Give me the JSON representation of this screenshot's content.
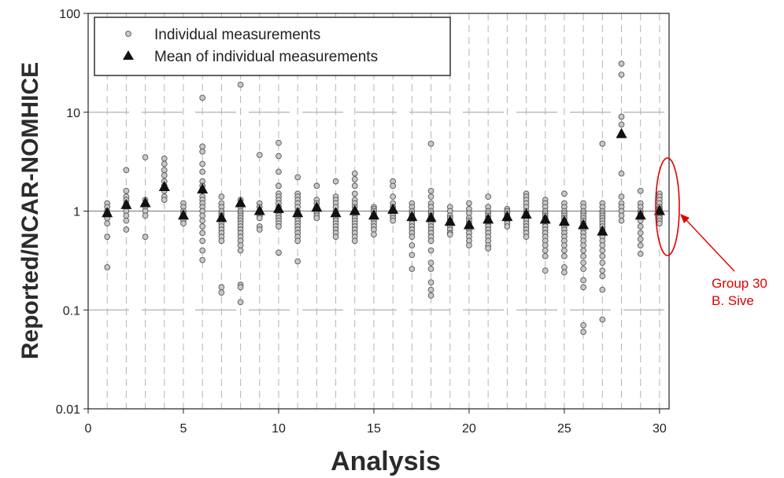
{
  "chart_data": {
    "type": "scatter",
    "xlabel": "Analysis",
    "ylabel": "Reported/NCAR-NOMHICE",
    "yscale": "log",
    "xlim": [
      0,
      30.5
    ],
    "ylim": [
      0.01,
      100
    ],
    "x_ticks": [
      0,
      5,
      10,
      15,
      20,
      25,
      30
    ],
    "y_ticks": [
      {
        "value": 0.01,
        "label": "0.01"
      },
      {
        "value": 0.1,
        "label": "0.1"
      },
      {
        "value": 1,
        "label": "1"
      },
      {
        "value": 10,
        "label": "10"
      },
      {
        "value": 100,
        "label": "100"
      }
    ],
    "reference_line": 1,
    "legend": {
      "position": "top-left",
      "entries": [
        {
          "label": "Individual measurements",
          "marker": "circle"
        },
        {
          "label": "Mean of individual measurements",
          "marker": "triangle"
        }
      ]
    },
    "series": [
      {
        "name": "Individual measurements",
        "points": [
          {
            "x": 1,
            "values": [
              1.2,
              1.1,
              1.0,
              0.95,
              0.9,
              0.85,
              0.75,
              0.55,
              0.27
            ]
          },
          {
            "x": 2,
            "values": [
              2.6,
              1.6,
              1.4,
              1.3,
              1.2,
              1.1,
              1.0,
              0.9,
              0.8,
              0.65
            ]
          },
          {
            "x": 3,
            "values": [
              3.5,
              1.3,
              1.2,
              1.1,
              1.0,
              0.9,
              0.55
            ]
          },
          {
            "x": 4,
            "values": [
              3.4,
              3.0,
              2.6,
              2.3,
              2.0,
              1.8,
              1.6,
              1.4,
              1.3
            ]
          },
          {
            "x": 5,
            "values": [
              1.2,
              1.1,
              1.0,
              0.95,
              0.9,
              0.85,
              0.8,
              0.75
            ]
          },
          {
            "x": 6,
            "values": [
              14,
              4.5,
              4.0,
              3.0,
              2.5,
              2.0,
              1.8,
              1.6,
              1.4,
              1.3,
              1.2,
              1.1,
              1.0,
              0.9,
              0.8,
              0.7,
              0.6,
              0.5,
              0.4,
              0.32
            ]
          },
          {
            "x": 7,
            "values": [
              1.4,
              1.2,
              1.1,
              1.0,
              0.95,
              0.9,
              0.85,
              0.8,
              0.75,
              0.7,
              0.65,
              0.6,
              0.55,
              0.5,
              0.17,
              0.15
            ]
          },
          {
            "x": 8,
            "values": [
              19,
              1.3,
              1.2,
              1.1,
              1.0,
              0.95,
              0.9,
              0.85,
              0.8,
              0.75,
              0.7,
              0.65,
              0.6,
              0.55,
              0.5,
              0.45,
              0.4,
              0.18,
              0.17,
              0.12
            ]
          },
          {
            "x": 9,
            "values": [
              3.7,
              1.2,
              1.1,
              1.0,
              0.95,
              0.9,
              0.85,
              0.7,
              0.65
            ]
          },
          {
            "x": 10,
            "values": [
              4.9,
              3.6,
              2.5,
              1.8,
              1.5,
              1.4,
              1.3,
              1.2,
              1.1,
              1.0,
              0.95,
              0.9,
              0.85,
              0.8,
              0.75,
              0.7,
              0.38
            ]
          },
          {
            "x": 11,
            "values": [
              2.2,
              1.5,
              1.4,
              1.3,
              1.2,
              1.1,
              1.0,
              0.95,
              0.9,
              0.85,
              0.8,
              0.75,
              0.7,
              0.65,
              0.6,
              0.55,
              0.5,
              0.31
            ]
          },
          {
            "x": 12,
            "values": [
              1.8,
              1.3,
              1.2,
              1.1,
              1.0,
              0.95,
              0.9,
              0.85
            ]
          },
          {
            "x": 13,
            "values": [
              2.0,
              1.4,
              1.3,
              1.2,
              1.1,
              1.0,
              0.95,
              0.9,
              0.85,
              0.8,
              0.75,
              0.7,
              0.65,
              0.6,
              0.55
            ]
          },
          {
            "x": 14,
            "values": [
              2.4,
              2.1,
              1.8,
              1.5,
              1.3,
              1.2,
              1.1,
              1.0,
              0.9,
              0.85,
              0.8,
              0.75,
              0.7,
              0.65,
              0.6,
              0.55,
              0.5
            ]
          },
          {
            "x": 15,
            "values": [
              1.1,
              1.05,
              1.0,
              0.95,
              0.9,
              0.85,
              0.8,
              0.75,
              0.7,
              0.65,
              0.58
            ]
          },
          {
            "x": 16,
            "values": [
              2.0,
              1.8,
              1.4,
              1.2,
              1.1,
              1.0,
              0.95,
              0.9,
              0.85,
              0.8
            ]
          },
          {
            "x": 17,
            "values": [
              1.2,
              1.1,
              1.0,
              0.95,
              0.9,
              0.85,
              0.8,
              0.75,
              0.7,
              0.65,
              0.6,
              0.55,
              0.45,
              0.36,
              0.26
            ]
          },
          {
            "x": 18,
            "values": [
              4.8,
              1.6,
              1.4,
              1.2,
              1.1,
              1.0,
              0.95,
              0.9,
              0.85,
              0.8,
              0.75,
              0.7,
              0.65,
              0.6,
              0.55,
              0.5,
              0.4,
              0.3,
              0.26,
              0.19,
              0.16,
              0.14
            ]
          },
          {
            "x": 19,
            "values": [
              1.1,
              1.0,
              0.9,
              0.85,
              0.8,
              0.75,
              0.7,
              0.65,
              0.6,
              0.58
            ]
          },
          {
            "x": 20,
            "values": [
              1.2,
              1.05,
              0.95,
              0.85,
              0.8,
              0.75,
              0.7,
              0.65,
              0.6,
              0.55,
              0.5,
              0.45
            ]
          },
          {
            "x": 21,
            "values": [
              1.4,
              1.1,
              1.0,
              0.95,
              0.9,
              0.85,
              0.8,
              0.75,
              0.7,
              0.65,
              0.6,
              0.55,
              0.5,
              0.45,
              0.42
            ]
          },
          {
            "x": 22,
            "values": [
              1.05,
              1.0,
              0.95,
              0.9,
              0.85,
              0.8,
              0.75,
              0.7
            ]
          },
          {
            "x": 23,
            "values": [
              1.5,
              1.4,
              1.3,
              1.2,
              1.1,
              1.0,
              0.95,
              0.9,
              0.85,
              0.8,
              0.75,
              0.7,
              0.65,
              0.6,
              0.55
            ]
          },
          {
            "x": 24,
            "values": [
              1.3,
              1.2,
              1.1,
              1.0,
              0.95,
              0.9,
              0.85,
              0.8,
              0.75,
              0.7,
              0.65,
              0.6,
              0.55,
              0.5,
              0.45,
              0.4,
              0.35,
              0.25
            ]
          },
          {
            "x": 25,
            "values": [
              1.5,
              1.2,
              1.1,
              1.0,
              0.95,
              0.9,
              0.85,
              0.8,
              0.75,
              0.7,
              0.65,
              0.6,
              0.55,
              0.5,
              0.45,
              0.4,
              0.35,
              0.27,
              0.24
            ]
          },
          {
            "x": 26,
            "values": [
              1.2,
              1.1,
              1.0,
              0.95,
              0.9,
              0.85,
              0.8,
              0.75,
              0.7,
              0.65,
              0.6,
              0.55,
              0.5,
              0.45,
              0.4,
              0.35,
              0.3,
              0.26,
              0.2,
              0.17,
              0.07,
              0.06
            ]
          },
          {
            "x": 27,
            "values": [
              4.8,
              1.2,
              1.1,
              1.0,
              0.95,
              0.9,
              0.85,
              0.8,
              0.75,
              0.7,
              0.65,
              0.6,
              0.55,
              0.5,
              0.45,
              0.4,
              0.35,
              0.3,
              0.25,
              0.22,
              0.16,
              0.08
            ]
          },
          {
            "x": 28,
            "values": [
              31,
              24,
              9.0,
              7.5,
              2.4,
              1.4,
              1.2,
              1.1,
              1.0,
              0.9,
              0.8
            ]
          },
          {
            "x": 29,
            "values": [
              1.6,
              1.2,
              1.1,
              1.0,
              0.95,
              0.9,
              0.8,
              0.7,
              0.6,
              0.52,
              0.45,
              0.37
            ]
          },
          {
            "x": 30,
            "values": [
              1.5,
              1.4,
              1.3,
              1.2,
              1.1,
              1.05,
              1.0,
              0.95,
              0.9,
              0.85,
              0.8,
              0.75
            ]
          }
        ]
      },
      {
        "name": "Mean of individual measurements",
        "x": [
          1,
          2,
          3,
          4,
          5,
          6,
          7,
          8,
          9,
          10,
          11,
          12,
          13,
          14,
          15,
          16,
          17,
          18,
          19,
          20,
          21,
          22,
          23,
          24,
          25,
          26,
          27,
          28,
          29,
          30
        ],
        "y": [
          0.95,
          1.15,
          1.2,
          1.75,
          0.9,
          1.65,
          0.85,
          1.2,
          1.0,
          1.05,
          0.95,
          1.08,
          0.95,
          1.0,
          0.9,
          1.03,
          0.87,
          0.85,
          0.78,
          0.72,
          0.82,
          0.87,
          0.92,
          0.82,
          0.78,
          0.72,
          0.62,
          6.0,
          0.9,
          1.0
        ]
      }
    ],
    "annotation": {
      "lines": [
        "Group 30",
        "B. Sive"
      ],
      "target_x": 30,
      "color": "#e00000"
    }
  }
}
